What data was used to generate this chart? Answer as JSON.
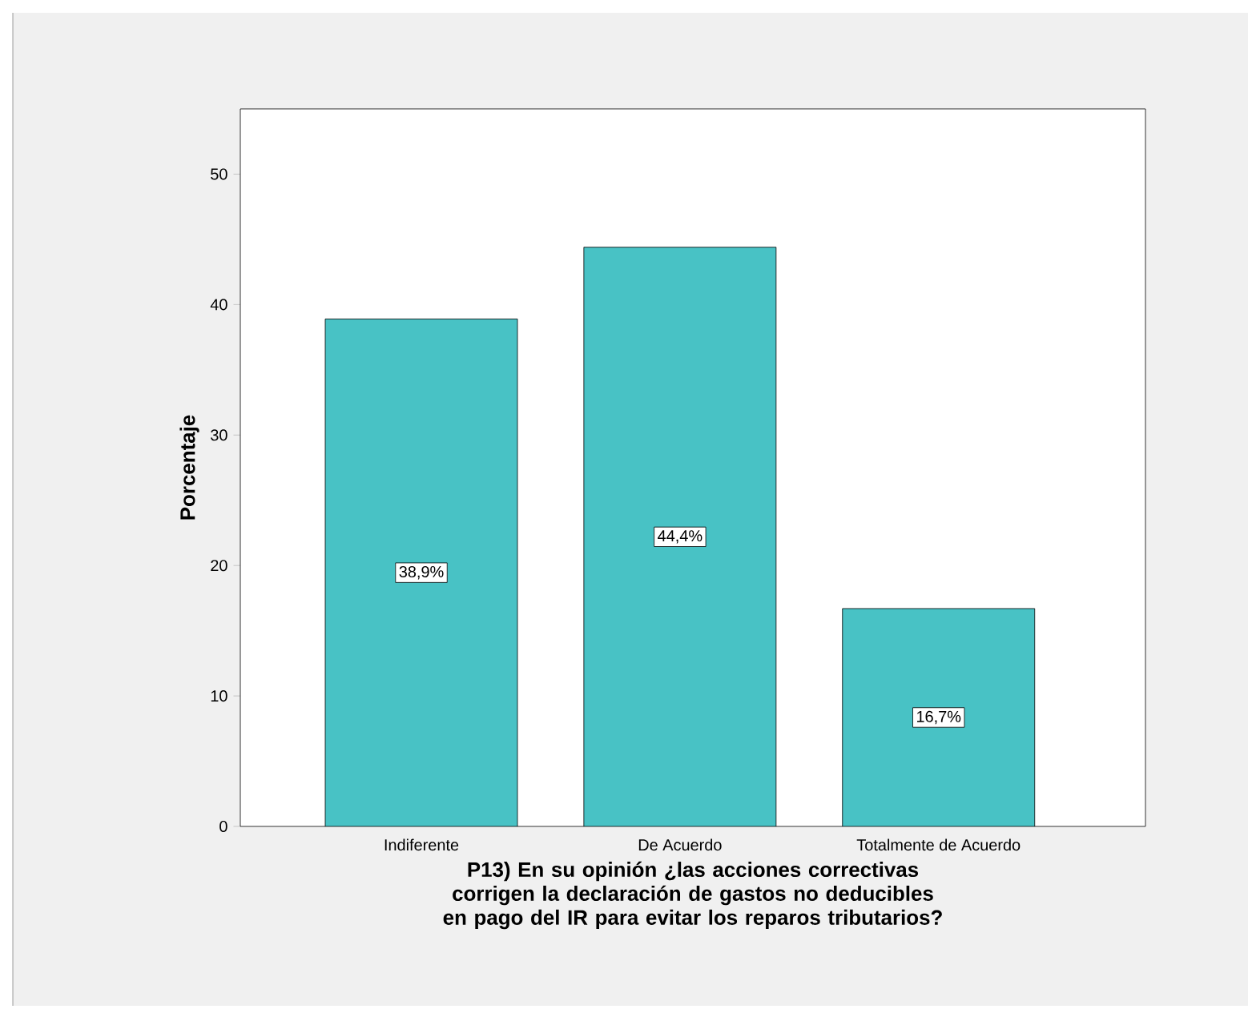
{
  "chart_data": {
    "type": "bar",
    "xlabel": "P13) En su opinión ¿las acciones correctivas corrigen la declaración de gastos no deducibles en pago del IR para evitar los reparos tributarios?",
    "ylabel": "Porcentaje",
    "categories": [
      "Indiferente",
      "De Acuerdo",
      "Totalmente de Acuerdo"
    ],
    "values": [
      38.9,
      44.4,
      16.7
    ],
    "value_labels": [
      "38,9%",
      "44,4%",
      "16,7%"
    ],
    "color": "#48c2c5",
    "ylim": [
      0,
      55
    ],
    "yticks": [
      0,
      10,
      20,
      30,
      40,
      50
    ],
    "grid": false
  }
}
